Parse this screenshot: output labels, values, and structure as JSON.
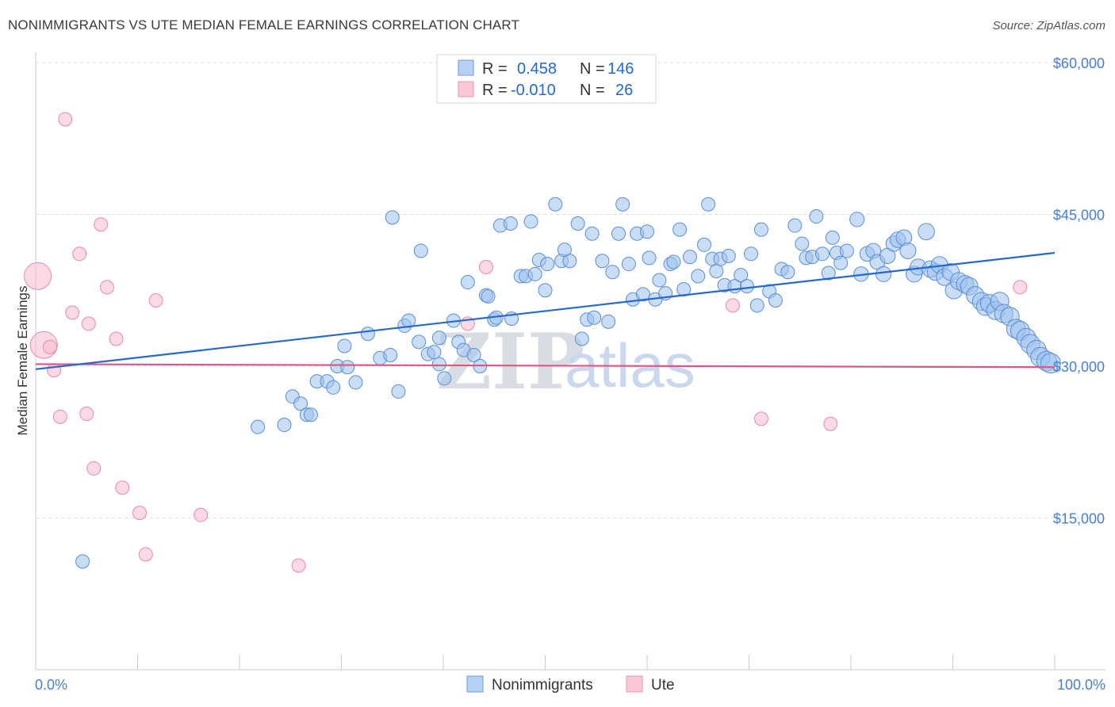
{
  "title": "NONIMMIGRANTS VS UTE MEDIAN FEMALE EARNINGS CORRELATION CHART",
  "source": "Source: ZipAtlas.com",
  "watermark": {
    "zip": "ZIP",
    "atlas": "atlas"
  },
  "colors": {
    "blue": "#9dc1ee",
    "blue_stroke": "#5a8fd6",
    "blue_line": "#2468d0",
    "pink": "#f7bcd0",
    "pink_stroke": "#e78aa8",
    "pink_line": "#e0567f",
    "tick_text": "#4a7fd0",
    "grid": "#d8dce3"
  },
  "legend": {
    "rows": [
      {
        "r_label": "R =",
        "r_value": "0.458",
        "n_label": "N =",
        "n_value": "146"
      },
      {
        "r_label": "R =",
        "r_value": "-0.010",
        "n_label": "N =",
        "n_value": "26"
      }
    ]
  },
  "bottom_legend": {
    "series1": "Nonimmigrants",
    "series2": "Ute"
  },
  "chart_data": {
    "type": "scatter",
    "title": "NONIMMIGRANTS VS UTE MEDIAN FEMALE EARNINGS CORRELATION CHART",
    "xlabel": "",
    "ylabel": "Median Female Earnings",
    "xlim": [
      0,
      100
    ],
    "ylim": [
      0,
      63000
    ],
    "x_tick_labels": [
      "0.0%",
      "100.0%"
    ],
    "y_ticks": [
      15000,
      30000,
      45000,
      60000
    ],
    "y_tick_labels": [
      "$15,000",
      "$30,000",
      "$45,000",
      "$60,000"
    ],
    "grid": "horizontal dashed",
    "legend_position": "top-center",
    "series": [
      {
        "name": "Nonimmigrants",
        "color": "#9dc1ee",
        "trend": {
          "x": [
            0,
            100
          ],
          "y": [
            29700,
            41200
          ]
        },
        "points": [
          [
            4.6,
            10700
          ],
          [
            21.8,
            24000
          ],
          [
            24.4,
            24200
          ],
          [
            25.2,
            27000
          ],
          [
            26.0,
            26300
          ],
          [
            26.6,
            25200
          ],
          [
            27.0,
            25200
          ],
          [
            27.6,
            28500
          ],
          [
            28.6,
            28500
          ],
          [
            29.2,
            27900
          ],
          [
            29.6,
            30000
          ],
          [
            30.6,
            29900
          ],
          [
            31.4,
            28400
          ],
          [
            30.3,
            32000
          ],
          [
            32.6,
            33200
          ],
          [
            33.8,
            30800
          ],
          [
            34.8,
            31100
          ],
          [
            35.0,
            44700
          ],
          [
            35.6,
            27500
          ],
          [
            36.2,
            34000
          ],
          [
            36.6,
            34500
          ],
          [
            37.6,
            32400
          ],
          [
            37.8,
            41400
          ],
          [
            38.5,
            31200
          ],
          [
            39.1,
            31400
          ],
          [
            39.6,
            30200
          ],
          [
            39.6,
            32800
          ],
          [
            40.1,
            28800
          ],
          [
            41.0,
            34500
          ],
          [
            41.5,
            32400
          ],
          [
            42.0,
            31600
          ],
          [
            42.4,
            38300
          ],
          [
            43.0,
            31100
          ],
          [
            43.6,
            30000
          ],
          [
            44.2,
            37000
          ],
          [
            44.4,
            36900
          ],
          [
            45.0,
            34600
          ],
          [
            45.2,
            34800
          ],
          [
            45.6,
            43900
          ],
          [
            46.6,
            44100
          ],
          [
            46.7,
            34700
          ],
          [
            47.6,
            38900
          ],
          [
            48.1,
            38900
          ],
          [
            48.6,
            44300
          ],
          [
            49.0,
            39100
          ],
          [
            49.4,
            40500
          ],
          [
            50.0,
            37500
          ],
          [
            50.2,
            40100
          ],
          [
            51.0,
            46000
          ],
          [
            51.6,
            40400
          ],
          [
            51.9,
            41500
          ],
          [
            52.4,
            40400
          ],
          [
            53.2,
            44100
          ],
          [
            53.6,
            32700
          ],
          [
            54.1,
            34600
          ],
          [
            54.6,
            43100
          ],
          [
            54.8,
            34800
          ],
          [
            55.6,
            40400
          ],
          [
            56.2,
            34400
          ],
          [
            56.6,
            39300
          ],
          [
            57.2,
            43100
          ],
          [
            57.6,
            46000
          ],
          [
            58.2,
            40100
          ],
          [
            58.6,
            36600
          ],
          [
            59.0,
            43100
          ],
          [
            59.6,
            37100
          ],
          [
            60.0,
            43300
          ],
          [
            60.2,
            40700
          ],
          [
            60.8,
            36600
          ],
          [
            61.2,
            38500
          ],
          [
            61.8,
            37200
          ],
          [
            62.3,
            40100
          ],
          [
            62.6,
            40300
          ],
          [
            63.2,
            43500
          ],
          [
            63.6,
            37600
          ],
          [
            64.2,
            40800
          ],
          [
            65.0,
            38900
          ],
          [
            65.6,
            42000
          ],
          [
            66.0,
            46000
          ],
          [
            66.4,
            40600
          ],
          [
            66.8,
            39400
          ],
          [
            67.2,
            40600
          ],
          [
            67.6,
            38000
          ],
          [
            68.0,
            40900
          ],
          [
            68.6,
            37900
          ],
          [
            69.2,
            39000
          ],
          [
            69.8,
            37900
          ],
          [
            70.2,
            41100
          ],
          [
            70.8,
            36000
          ],
          [
            71.2,
            43500
          ],
          [
            72.0,
            37400
          ],
          [
            72.6,
            36500
          ],
          [
            73.2,
            39600
          ],
          [
            73.8,
            39300
          ],
          [
            74.5,
            43900
          ],
          [
            75.2,
            42100
          ],
          [
            75.6,
            40700
          ],
          [
            76.2,
            40800
          ],
          [
            76.6,
            44800
          ],
          [
            77.2,
            41100
          ],
          [
            77.8,
            39200
          ],
          [
            78.2,
            42700
          ],
          [
            78.6,
            41200
          ],
          [
            79.0,
            40200
          ],
          [
            79.6,
            41400
          ],
          [
            80.6,
            44500
          ],
          [
            81.0,
            39100
          ],
          [
            81.6,
            41100
          ],
          [
            82.2,
            41400
          ],
          [
            82.6,
            40300
          ],
          [
            83.2,
            39100
          ],
          [
            83.6,
            40900
          ],
          [
            84.2,
            42100
          ],
          [
            84.6,
            42500
          ],
          [
            85.2,
            42700
          ],
          [
            85.6,
            41400
          ],
          [
            86.2,
            39100
          ],
          [
            86.6,
            39800
          ],
          [
            87.4,
            43300
          ],
          [
            87.8,
            39600
          ],
          [
            88.3,
            39300
          ],
          [
            88.7,
            40000
          ],
          [
            89.2,
            38800
          ],
          [
            89.8,
            39300
          ],
          [
            90.1,
            37500
          ],
          [
            90.6,
            38400
          ],
          [
            91.2,
            38100
          ],
          [
            91.6,
            37900
          ],
          [
            92.2,
            37000
          ],
          [
            92.8,
            36400
          ],
          [
            93.2,
            35900
          ],
          [
            93.6,
            36200
          ],
          [
            94.2,
            35500
          ],
          [
            94.6,
            36400
          ],
          [
            95.0,
            35200
          ],
          [
            95.6,
            34900
          ],
          [
            96.2,
            33700
          ],
          [
            96.6,
            33500
          ],
          [
            97.2,
            32800
          ],
          [
            97.6,
            32200
          ],
          [
            98.2,
            31600
          ],
          [
            98.6,
            30900
          ],
          [
            99.2,
            30500
          ],
          [
            99.6,
            30300
          ]
        ]
      },
      {
        "name": "Ute",
        "color": "#f7bcd0",
        "trend": {
          "x": [
            0,
            100
          ],
          "y": [
            30200,
            29900
          ]
        },
        "points": [
          [
            0.2,
            38900
          ],
          [
            0.8,
            32100
          ],
          [
            1.4,
            31900
          ],
          [
            1.8,
            29600
          ],
          [
            2.4,
            25000
          ],
          [
            2.9,
            54400
          ],
          [
            3.6,
            35300
          ],
          [
            4.3,
            41100
          ],
          [
            5.0,
            25300
          ],
          [
            5.2,
            34200
          ],
          [
            5.7,
            19900
          ],
          [
            6.4,
            44000
          ],
          [
            7.0,
            37800
          ],
          [
            7.9,
            32700
          ],
          [
            8.5,
            18000
          ],
          [
            10.2,
            15500
          ],
          [
            10.8,
            11400
          ],
          [
            11.8,
            36500
          ],
          [
            16.2,
            15300
          ],
          [
            25.8,
            10300
          ],
          [
            42.4,
            34200
          ],
          [
            44.2,
            39800
          ],
          [
            68.4,
            36000
          ],
          [
            71.2,
            24800
          ],
          [
            78.0,
            24300
          ],
          [
            96.6,
            37800
          ]
        ]
      }
    ]
  }
}
